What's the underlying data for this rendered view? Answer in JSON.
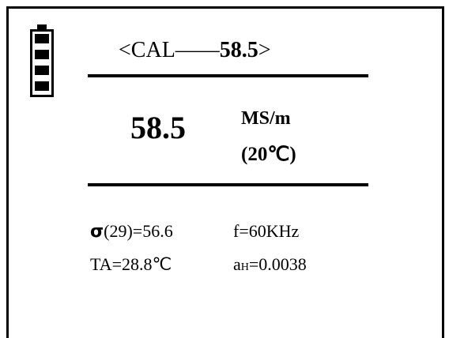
{
  "battery": {
    "icon": "battery-icon",
    "level_bars": 4
  },
  "header": {
    "open": "<CAL",
    "dash": "——",
    "value": "58.5",
    "close": ">"
  },
  "reading": {
    "value": "58.5",
    "unit": "MS/m",
    "temperature": "(20℃)"
  },
  "details": {
    "sigma_symbol": "σ",
    "sigma_text": "(29)=56.6",
    "frequency": "f=60KHz",
    "ta": "TA=28.8℃",
    "a_base": "a",
    "a_sub": "H",
    "a_value": "=0.0038"
  }
}
